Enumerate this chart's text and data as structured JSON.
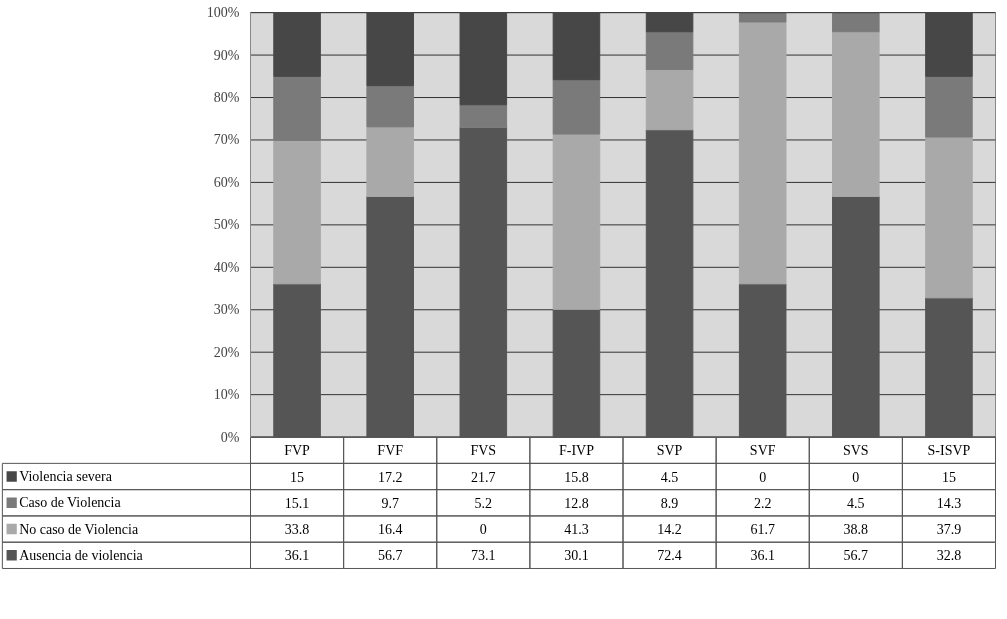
{
  "chart_data": {
    "type": "bar",
    "stacked": true,
    "categories": [
      "FVP",
      "FVF",
      "FVS",
      "F-IVP",
      "SVP",
      "SVF",
      "SVS",
      "S-ISVP"
    ],
    "series": [
      {
        "name": "Ausencia de violencia",
        "color": "#555555",
        "values": [
          36.1,
          56.7,
          73.1,
          30.1,
          72.4,
          36.1,
          56.7,
          32.8
        ]
      },
      {
        "name": "No caso de Violencia",
        "color": "#a9a9a9",
        "values": [
          33.8,
          16.4,
          0,
          41.3,
          14.2,
          61.7,
          38.8,
          37.9
        ]
      },
      {
        "name": "Caso de Violencia",
        "color": "#7a7a7a",
        "values": [
          15.1,
          9.7,
          5.2,
          12.8,
          8.9,
          2.2,
          4.5,
          14.3
        ]
      },
      {
        "name": "Violencia severa",
        "color": "#474747",
        "values": [
          15,
          17.2,
          21.7,
          15.8,
          4.5,
          0,
          0,
          15
        ]
      }
    ],
    "ylim": [
      0,
      100
    ],
    "yticks": [
      {
        "value": 0,
        "label": "0%"
      },
      {
        "value": 10,
        "label": "10%"
      },
      {
        "value": 20,
        "label": "20%"
      },
      {
        "value": 30,
        "label": "30%"
      },
      {
        "value": 40,
        "label": "40%"
      },
      {
        "value": 50,
        "label": "50%"
      },
      {
        "value": 60,
        "label": "60%"
      },
      {
        "value": 70,
        "label": "70%"
      },
      {
        "value": 80,
        "label": "80%"
      },
      {
        "value": 90,
        "label": "90%"
      },
      {
        "value": 100,
        "label": "100%"
      }
    ],
    "grid": "y",
    "legend": "bottom",
    "data_labels": true
  }
}
